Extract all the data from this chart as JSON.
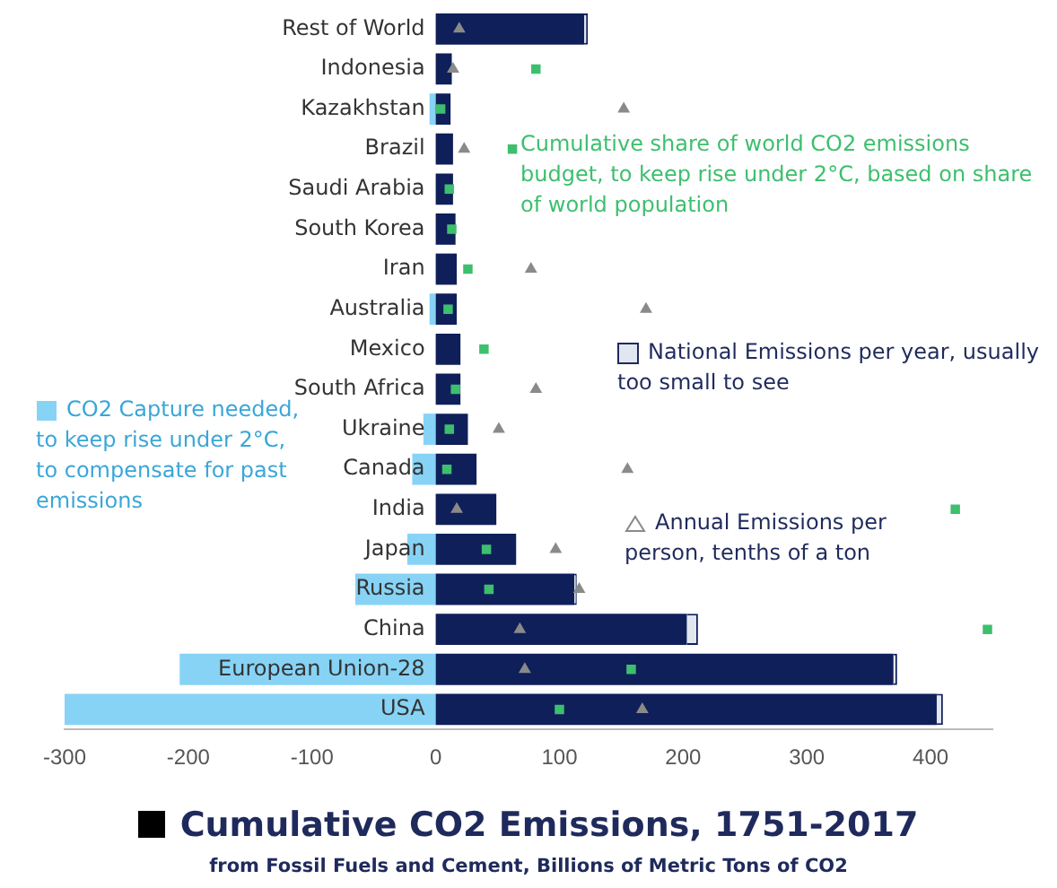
{
  "chart_data": {
    "type": "bar",
    "orientation": "horizontal",
    "stacked": true,
    "title": "Cumulative CO2 Emissions, 1751-2017",
    "subtitle": "from Fossil Fuels and Cement, Billions of Metric Tons of CO2",
    "categories": [
      "Rest of World",
      "Indonesia",
      "Kazakhstan",
      "Brazil",
      "Saudi Arabia",
      "South Korea",
      "Iran",
      "Australia",
      "Mexico",
      "South Africa",
      "Ukraine",
      "Canada",
      "India",
      "Japan",
      "Russia",
      "China",
      "European Union-28",
      "USA"
    ],
    "xlim": [
      -300,
      450
    ],
    "xticks": [
      -300,
      -200,
      -100,
      0,
      100,
      200,
      300,
      400
    ],
    "grid": false,
    "legend": "left",
    "series": [
      {
        "color": "#0f1f5a",
        "values": [
          120,
          13,
          12,
          14,
          14,
          16,
          17,
          17,
          20,
          20,
          26,
          33,
          49,
          65,
          112,
          203,
          370,
          405
        ]
      },
      {
        "name": "National Emissions per year, usually too small to see",
        "color": "#e2e6ee",
        "values": [
          3,
          null,
          null,
          null,
          null,
          null,
          null,
          null,
          null,
          null,
          null,
          null,
          null,
          null,
          2,
          9,
          3,
          5
        ]
      },
      {
        "name": "CO2 Capture needed, to keep rise under 2°C, to compensate for past emissions",
        "color": "#87d3f5",
        "values": [
          null,
          null,
          -5,
          null,
          null,
          null,
          null,
          -5,
          null,
          null,
          -10,
          -19,
          null,
          -23,
          -65,
          null,
          -207,
          -300
        ]
      },
      {
        "type": "scatter",
        "marker": "square",
        "name": "Cumulative share of world CO2 emissions budget, to keep rise under 2°C, based on share of world population",
        "color": "#3dbf6e",
        "values": [
          null,
          81,
          4,
          62,
          11,
          13,
          26,
          10,
          39,
          16,
          11,
          9,
          420,
          41,
          43,
          446,
          158,
          100
        ]
      },
      {
        "type": "scatter",
        "marker": "triangle",
        "name": "Annual Emissions per person, tenths of a ton",
        "color": "#8a8a8a",
        "values": [
          19,
          14,
          152,
          23,
          null,
          null,
          77,
          170,
          null,
          81,
          51,
          155,
          17,
          97,
          116,
          68,
          72,
          167
        ]
      }
    ]
  }
}
